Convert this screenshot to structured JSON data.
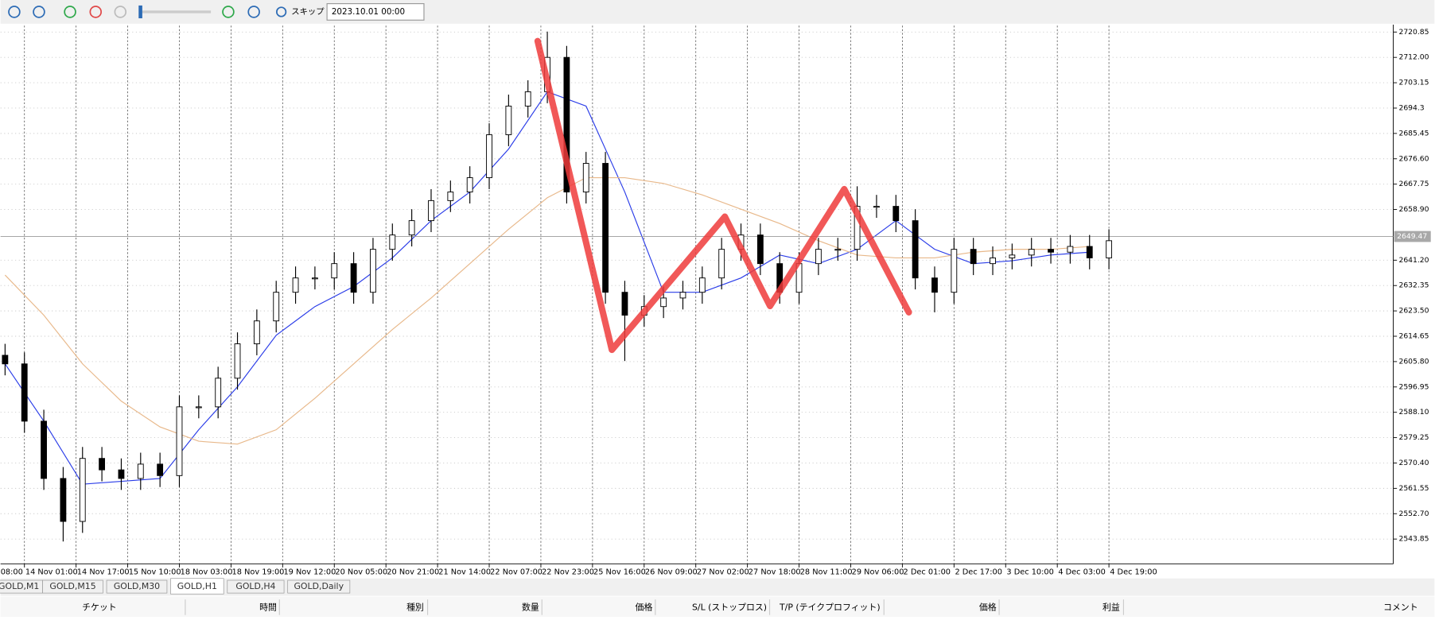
{
  "toolbar": {
    "skip": "スキップ",
    "date": "2023.10.01 00:00"
  },
  "chart_data": {
    "type": "candlestick",
    "candle_color": "#000000",
    "grid": true,
    "x": [
      -6,
      0,
      6,
      12,
      18,
      24,
      30,
      36,
      42,
      48,
      54,
      60,
      66,
      72,
      78,
      84,
      90,
      96,
      102,
      108,
      114,
      120,
      126,
      132,
      138,
      144,
      150,
      156,
      162,
      168,
      174,
      180,
      186,
      192,
      198,
      204,
      210,
      216,
      222,
      228,
      234,
      240,
      246,
      252,
      258,
      264,
      270,
      276,
      282,
      288,
      294,
      300,
      306,
      312,
      318,
      324,
      330,
      336
    ],
    "open": [
      2608,
      2605,
      2585,
      2565,
      2550,
      2572,
      2568,
      2565,
      2570,
      2566,
      2590,
      2590,
      2600,
      2612,
      2620,
      2630,
      2635,
      2635,
      2640,
      2630,
      2645,
      2650,
      2655,
      2662,
      2665,
      2670,
      2685,
      2695,
      2700,
      2712,
      2665,
      2675,
      2630,
      2622,
      2625,
      2628,
      2630,
      2635,
      2645,
      2650,
      2640,
      2630,
      2640,
      2645,
      2645,
      2660,
      2660,
      2655,
      2635,
      2630,
      2645,
      2640,
      2642,
      2643,
      2645,
      2644,
      2646,
      2642
    ],
    "high": [
      2612,
      2609,
      2589,
      2569,
      2576,
      2576,
      2572,
      2574,
      2574,
      2594,
      2594,
      2604,
      2616,
      2624,
      2634,
      2639,
      2639,
      2644,
      2644,
      2649,
      2654,
      2659,
      2666,
      2669,
      2674,
      2689,
      2699,
      2704,
      2721,
      2716,
      2679,
      2679,
      2634,
      2629,
      2632,
      2634,
      2639,
      2649,
      2654,
      2654,
      2644,
      2644,
      2649,
      2649,
      2667,
      2664,
      2664,
      2659,
      2639,
      2649,
      2649,
      2646,
      2647,
      2649,
      2649,
      2650,
      2650,
      2652
    ],
    "low": [
      2601,
      2581,
      2561,
      2543,
      2546,
      2564,
      2561,
      2561,
      2562,
      2562,
      2586,
      2586,
      2596,
      2608,
      2616,
      2626,
      2631,
      2631,
      2626,
      2626,
      2641,
      2646,
      2651,
      2658,
      2661,
      2666,
      2681,
      2691,
      2696,
      2661,
      2661,
      2626,
      2606,
      2618,
      2621,
      2624,
      2626,
      2631,
      2641,
      2636,
      2626,
      2626,
      2636,
      2641,
      2641,
      2656,
      2651,
      2631,
      2623,
      2626,
      2636,
      2636,
      2638,
      2639,
      2640,
      2640,
      2638,
      2638
    ],
    "close": [
      2605,
      2585,
      2565,
      2550,
      2572,
      2568,
      2565,
      2570,
      2566,
      2590,
      2590,
      2600,
      2612,
      2620,
      2630,
      2635,
      2635,
      2640,
      2630,
      2645,
      2650,
      2655,
      2662,
      2665,
      2670,
      2685,
      2695,
      2700,
      2712,
      2665,
      2675,
      2630,
      2622,
      2625,
      2628,
      2630,
      2635,
      2645,
      2650,
      2640,
      2630,
      2640,
      2645,
      2645,
      2660,
      2660,
      2655,
      2635,
      2630,
      2645,
      2640,
      2642,
      2643,
      2645,
      2644,
      2646,
      2642,
      2648
    ],
    "series": [
      {
        "color": "#2a3ce8",
        "x": [
          -6,
          6,
          18,
          30,
          42,
          54,
          66,
          78,
          90,
          102,
          114,
          126,
          138,
          150,
          162,
          174,
          186,
          198,
          210,
          222,
          234,
          246,
          258,
          270,
          282,
          294,
          306,
          318,
          330
        ],
        "values": [
          2605,
          2585,
          2563,
          2564,
          2565,
          2582,
          2597,
          2615,
          2625,
          2632,
          2642,
          2655,
          2665,
          2680,
          2700,
          2695,
          2665,
          2630,
          2630,
          2635,
          2643,
          2640,
          2645,
          2655,
          2645,
          2640,
          2641,
          2643,
          2644
        ]
      },
      {
        "color": "#e8b88a",
        "x": [
          -6,
          6,
          18,
          30,
          42,
          54,
          66,
          78,
          90,
          102,
          114,
          126,
          138,
          150,
          162,
          174,
          186,
          198,
          210,
          222,
          234,
          246,
          258,
          270,
          282,
          294,
          306,
          318,
          330
        ],
        "values": [
          2636,
          2622,
          2605,
          2592,
          2583,
          2578,
          2577,
          2582,
          2593,
          2605,
          2617,
          2628,
          2640,
          2652,
          2663,
          2670,
          2670,
          2668,
          2664,
          2659,
          2654,
          2648,
          2643,
          2642,
          2642,
          2644,
          2645,
          2645,
          2646
        ]
      }
    ],
    "zigzag": {
      "color": "#ee3b3b",
      "x": [
        159,
        182,
        217,
        231,
        254,
        274
      ],
      "values": [
        2717.7,
        2609.9,
        2656.4,
        2625.2,
        2666.0,
        2623.0
      ]
    },
    "current_price": 2649.47,
    "xlim": [
      -7.4,
      424.1
    ],
    "ylim": [
      2535.2,
      2723.1
    ],
    "xticks": [
      {
        "value": -16,
        "label": "08:00"
      },
      {
        "value": 0,
        "label": "14 Nov 01:00"
      },
      {
        "value": 16,
        "label": "14 Nov 17:00"
      },
      {
        "value": 32,
        "label": "15 Nov 10:00"
      },
      {
        "value": 48,
        "label": "18 Nov 03:00"
      },
      {
        "value": 64,
        "label": "18 Nov 19:00"
      },
      {
        "value": 80,
        "label": "19 Nov 12:00"
      },
      {
        "value": 96,
        "label": "20 Nov 05:00"
      },
      {
        "value": 112,
        "label": "20 Nov 21:00"
      },
      {
        "value": 128,
        "label": "21 Nov 14:00"
      },
      {
        "value": 144,
        "label": "22 Nov 07:00"
      },
      {
        "value": 160,
        "label": "22 Nov 23:00"
      },
      {
        "value": 176,
        "label": "25 Nov 16:00"
      },
      {
        "value": 192,
        "label": "26 Nov 09:00"
      },
      {
        "value": 208,
        "label": "27 Nov 02:00"
      },
      {
        "value": 224,
        "label": "27 Nov 18:00"
      },
      {
        "value": 240,
        "label": "28 Nov 11:00"
      },
      {
        "value": 256,
        "label": "29 Nov 06:00"
      },
      {
        "value": 272,
        "label": "2 Dec 01:00"
      },
      {
        "value": 288,
        "label": "2 Dec 17:00"
      },
      {
        "value": 304,
        "label": "3 Dec 10:00"
      },
      {
        "value": 320,
        "label": "4 Dec 03:00"
      },
      {
        "value": 336,
        "label": "4 Dec 19:00"
      }
    ],
    "yticks": [
      2720.85,
      {
        "value": 2712,
        "label": "2712.00"
      },
      2703.15,
      2694.3,
      2685.45,
      {
        "value": 2676.6,
        "label": "2676.60"
      },
      2667.75,
      {
        "value": 2658.9,
        "label": "2658.90"
      },
      {
        "value": 2641.2,
        "label": "2641.20"
      },
      2632.35,
      {
        "value": 2623.5,
        "label": "2623.50"
      },
      2614.65,
      {
        "value": 2605.8,
        "label": "2605.80"
      },
      2596.95,
      {
        "value": 2588.1,
        "label": "2588.10"
      },
      2579.25,
      {
        "value": 2570.4,
        "label": "2570.40"
      },
      2561.55,
      {
        "value": 2552.7,
        "label": "2552.70"
      },
      2543.85
    ]
  },
  "tabs": [
    "GOLD,M1",
    "GOLD,M15",
    "GOLD,M30",
    "GOLD,H1",
    "GOLD,H4",
    "GOLD,Daily"
  ],
  "active_tab": 3,
  "table": {
    "headers": [
      "チケット",
      "時間",
      "種別",
      "数量",
      "価格",
      "S/L (ストップロス)",
      "T/P (テイクプロフィット)",
      "価格",
      "利益",
      "コメント"
    ]
  }
}
